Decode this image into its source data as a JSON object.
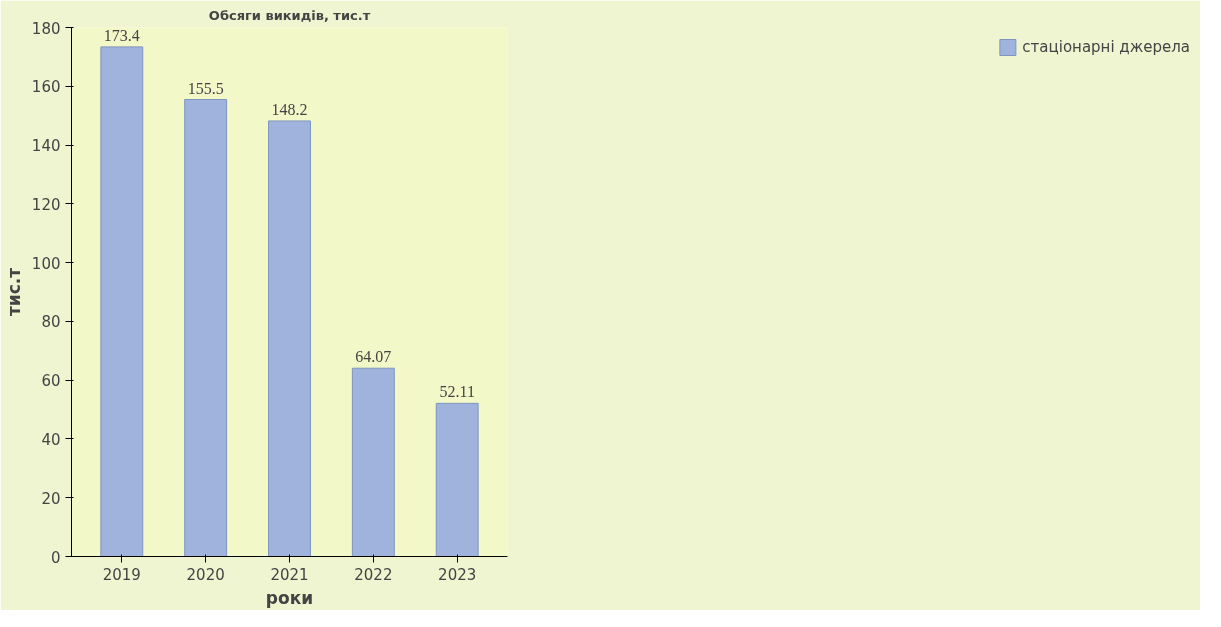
{
  "chart_data": {
    "type": "bar",
    "title": "Обсяги викидів, тис.т",
    "xlabel": "роки",
    "ylabel": "тис.т",
    "categories": [
      "2019",
      "2020",
      "2021",
      "2022",
      "2023"
    ],
    "series": [
      {
        "name": "стаціонарні джерела",
        "color": "#9fb3dd",
        "values": [
          173.4,
          155.5,
          148.2,
          64.07,
          52.11
        ]
      }
    ],
    "ylim": [
      0,
      180
    ],
    "yticks": [
      0,
      20,
      40,
      60,
      80,
      100,
      120,
      140,
      160,
      180
    ],
    "data_labels": true,
    "legend": "right",
    "grid": false
  }
}
